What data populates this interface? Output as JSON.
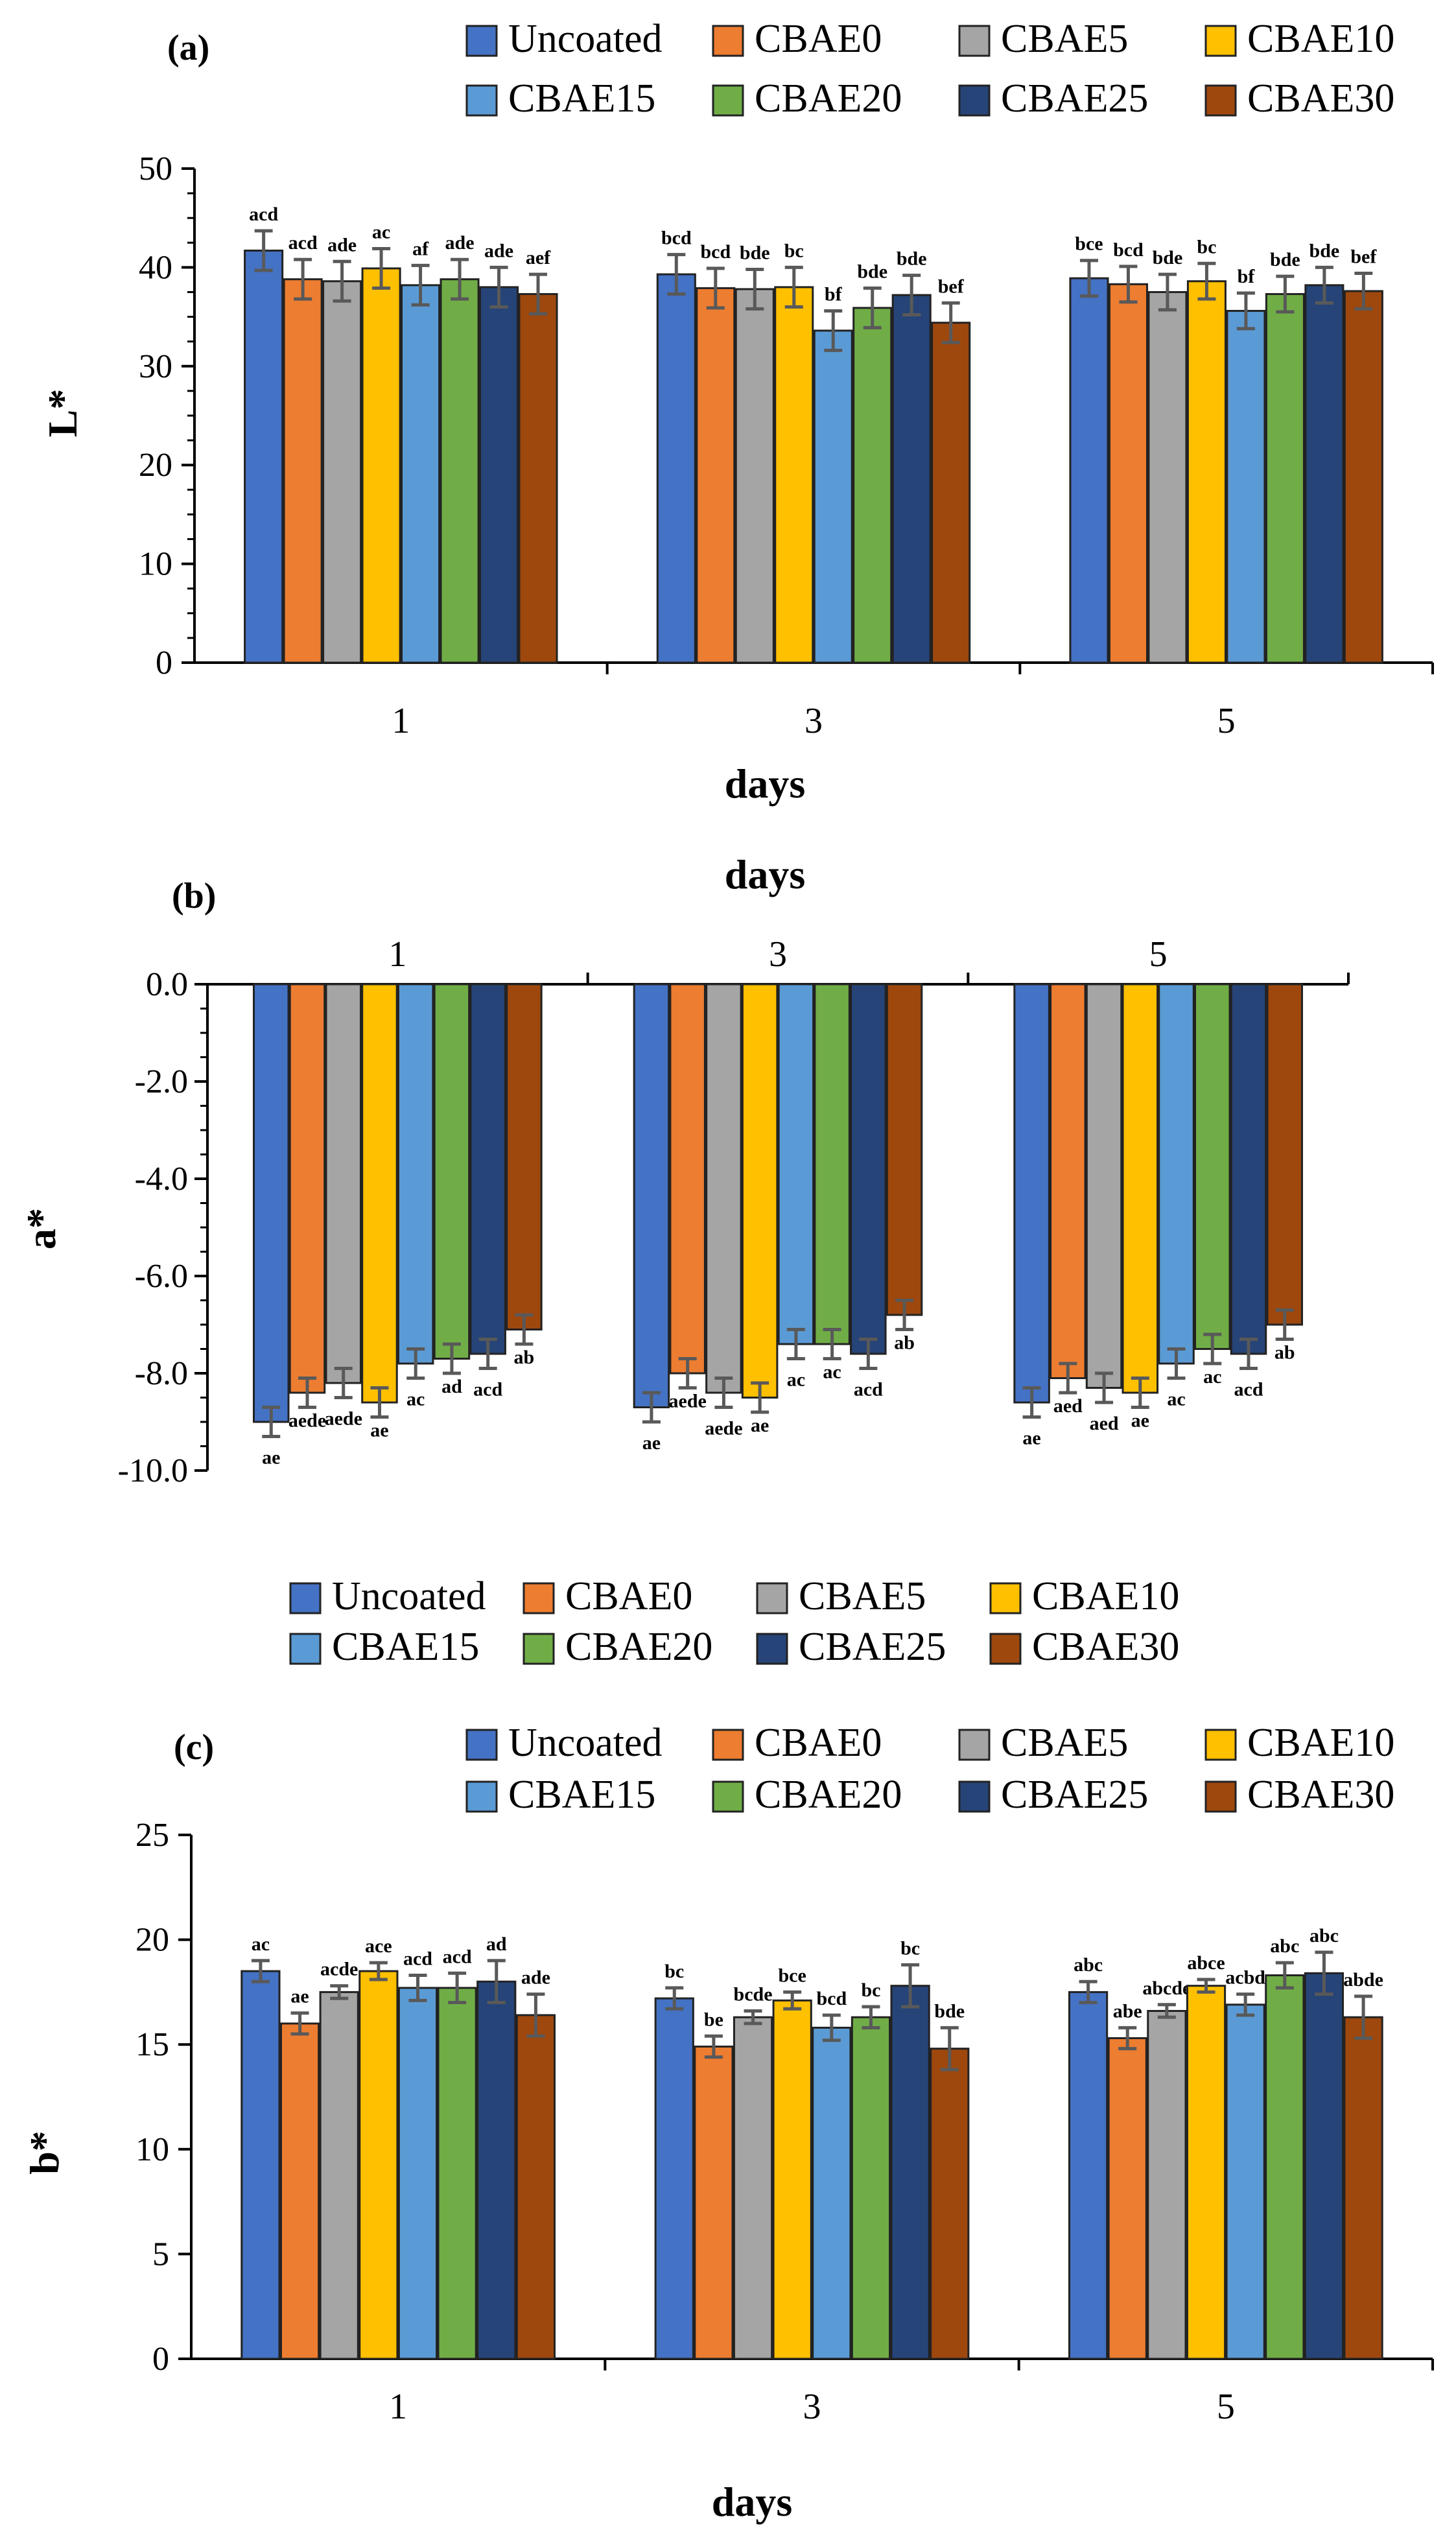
{
  "legend_labels": [
    "Uncoated",
    "CBAE0",
    "CBAE5",
    "CBAE10",
    "CBAE15",
    "CBAE20",
    "CBAE25",
    "CBAE30"
  ],
  "colors": {
    "Uncoated": "#4472C4",
    "CBAE0": "#ED7D31",
    "CBAE5": "#A5A5A5",
    "CBAE10": "#FFC000",
    "CBAE15": "#5B9BD5",
    "CBAE20": "#70AD47",
    "CBAE25": "#264478",
    "CBAE30": "#9E480E",
    "edge": "#222222",
    "errorbar": "#595959"
  },
  "chart_data": [
    {
      "panel": "(a)",
      "type": "bar",
      "categories": [
        "1",
        "3",
        "5"
      ],
      "xlabel": "days",
      "ylabel": "L*",
      "ylim": [
        0,
        50
      ],
      "yticks": [
        "0",
        "10",
        "20",
        "30",
        "40",
        "50"
      ],
      "extra_text": "days",
      "series": [
        {
          "name": "Uncoated",
          "values": [
            41.7,
            39.3,
            38.9
          ],
          "errors": [
            2.0,
            2.0,
            1.8
          ],
          "labels": [
            "acd",
            "bcd",
            "bce"
          ]
        },
        {
          "name": "CBAE0",
          "values": [
            38.8,
            37.9,
            38.3
          ],
          "errors": [
            2.0,
            2.0,
            1.8
          ],
          "labels": [
            "acd",
            "bcd",
            "bcd"
          ]
        },
        {
          "name": "CBAE5",
          "values": [
            38.6,
            37.8,
            37.5
          ],
          "errors": [
            2.0,
            2.0,
            1.8
          ],
          "labels": [
            "ade",
            "bde",
            "bde"
          ]
        },
        {
          "name": "CBAE10",
          "values": [
            39.9,
            38.0,
            38.6
          ],
          "errors": [
            2.0,
            2.0,
            1.8
          ],
          "labels": [
            "ac",
            "bc",
            "bc"
          ]
        },
        {
          "name": "CBAE15",
          "values": [
            38.2,
            33.6,
            35.6
          ],
          "errors": [
            2.0,
            2.0,
            1.8
          ],
          "labels": [
            "af",
            "bf",
            "bf"
          ]
        },
        {
          "name": "CBAE20",
          "values": [
            38.8,
            35.9,
            37.3
          ],
          "errors": [
            2.0,
            2.0,
            1.8
          ],
          "labels": [
            "ade",
            "bde",
            "bde"
          ]
        },
        {
          "name": "CBAE25",
          "values": [
            38.0,
            37.2,
            38.2
          ],
          "errors": [
            2.0,
            2.0,
            1.8
          ],
          "labels": [
            "ade",
            "bde",
            "bde"
          ]
        },
        {
          "name": "CBAE30",
          "values": [
            37.3,
            34.4,
            37.6
          ],
          "errors": [
            2.0,
            2.0,
            1.8
          ],
          "labels": [
            "aef",
            "bef",
            "bef"
          ]
        }
      ]
    },
    {
      "panel": "(b)",
      "type": "bar",
      "categories": [
        "1",
        "3",
        "5"
      ],
      "xlabel": "",
      "ylabel": "a*",
      "ylim": [
        -10,
        0
      ],
      "yticks": [
        "-10.0",
        "-8.0",
        "-6.0",
        "-4.0",
        "-2.0",
        "0.0"
      ],
      "series": [
        {
          "name": "Uncoated",
          "values": [
            -9.0,
            -8.7,
            -8.6
          ],
          "errors": [
            0.3,
            0.3,
            0.3
          ],
          "labels": [
            "ae",
            "ae",
            "ae"
          ]
        },
        {
          "name": "CBAE0",
          "values": [
            -8.4,
            -8.0,
            -8.1
          ],
          "errors": [
            0.3,
            0.3,
            0.3
          ],
          "labels": [
            "aede",
            "aede",
            "aed"
          ]
        },
        {
          "name": "CBAE5",
          "values": [
            -8.2,
            -8.4,
            -8.3
          ],
          "errors": [
            0.3,
            0.3,
            0.3
          ],
          "labels": [
            "aede",
            "aede",
            "aed"
          ]
        },
        {
          "name": "CBAE10",
          "values": [
            -8.6,
            -8.5,
            -8.4
          ],
          "errors": [
            0.3,
            0.3,
            0.3
          ],
          "labels": [
            "ae",
            "ae",
            "ae"
          ]
        },
        {
          "name": "CBAE15",
          "values": [
            -7.8,
            -7.4,
            -7.8
          ],
          "errors": [
            0.3,
            0.3,
            0.3
          ],
          "labels": [
            "ac",
            "ac",
            "ac"
          ]
        },
        {
          "name": "CBAE20",
          "values": [
            -7.7,
            -7.4,
            -7.5
          ],
          "errors": [
            0.3,
            0.3,
            0.3
          ],
          "labels": [
            "ad",
            "ac",
            "ac"
          ]
        },
        {
          "name": "CBAE25",
          "values": [
            -7.6,
            -7.6,
            -7.6
          ],
          "errors": [
            0.3,
            0.3,
            0.3
          ],
          "labels": [
            "acd",
            "acd",
            "acd"
          ]
        },
        {
          "name": "CBAE30",
          "values": [
            -7.1,
            -6.8,
            -7.0
          ],
          "errors": [
            0.3,
            0.3,
            0.3
          ],
          "labels": [
            "ab",
            "ab",
            "ab"
          ]
        }
      ]
    },
    {
      "panel": "(c)",
      "type": "bar",
      "categories": [
        "1",
        "3",
        "5"
      ],
      "xlabel": "days",
      "ylabel": "b*",
      "ylim": [
        0,
        25
      ],
      "yticks": [
        "0",
        "5",
        "10",
        "15",
        "20",
        "25"
      ],
      "series": [
        {
          "name": "Uncoated",
          "values": [
            18.5,
            17.2,
            17.5
          ],
          "errors": [
            0.5,
            0.5,
            0.5
          ],
          "labels": [
            "ac",
            "bc",
            "abc"
          ]
        },
        {
          "name": "CBAE0",
          "values": [
            16.0,
            14.9,
            15.3
          ],
          "errors": [
            0.5,
            0.5,
            0.5
          ],
          "labels": [
            "ae",
            "be",
            "abe"
          ]
        },
        {
          "name": "CBAE5",
          "values": [
            17.5,
            16.3,
            16.6
          ],
          "errors": [
            0.3,
            0.3,
            0.3
          ],
          "labels": [
            "acde",
            "bcde",
            "abcde"
          ]
        },
        {
          "name": "CBAE10",
          "values": [
            18.5,
            17.1,
            17.8
          ],
          "errors": [
            0.4,
            0.4,
            0.3
          ],
          "labels": [
            "ace",
            "bce",
            "abce"
          ]
        },
        {
          "name": "CBAE15",
          "values": [
            17.7,
            15.8,
            16.9
          ],
          "errors": [
            0.6,
            0.6,
            0.5
          ],
          "labels": [
            "acd",
            "bcd",
            "acbd"
          ]
        },
        {
          "name": "CBAE20",
          "values": [
            17.7,
            16.3,
            18.3
          ],
          "errors": [
            0.7,
            0.5,
            0.6
          ],
          "labels": [
            "acd",
            "bc",
            "abc"
          ]
        },
        {
          "name": "CBAE25",
          "values": [
            18.0,
            17.8,
            18.4
          ],
          "errors": [
            1.0,
            1.0,
            1.0
          ],
          "labels": [
            "ad",
            "bc",
            "abc"
          ]
        },
        {
          "name": "CBAE30",
          "values": [
            16.4,
            14.8,
            16.3
          ],
          "errors": [
            1.0,
            1.0,
            1.0
          ],
          "labels": [
            "ade",
            "bde",
            "abde"
          ]
        }
      ]
    }
  ]
}
